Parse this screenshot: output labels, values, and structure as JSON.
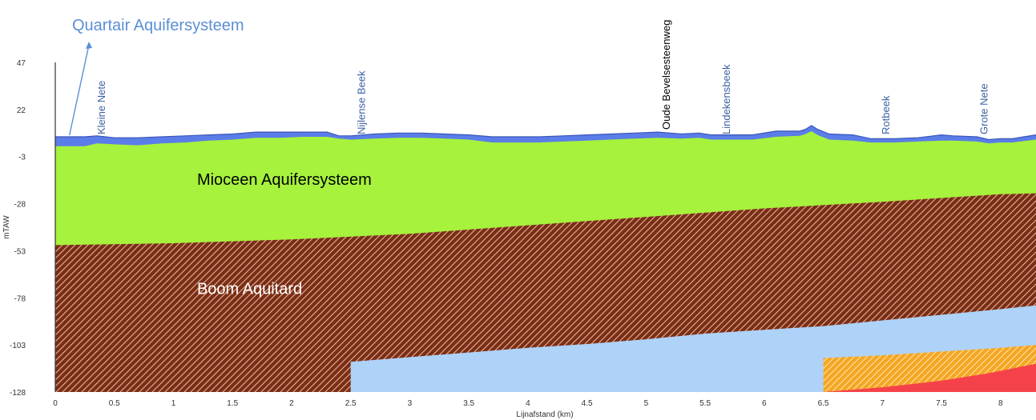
{
  "chart_data": {
    "type": "area",
    "xlabel": "Lijnafstand (km)",
    "ylabel": "mTAW",
    "xlim": [
      0,
      8.3
    ],
    "ylim": [
      -128,
      47
    ],
    "x_ticks": [
      "0",
      "0.5",
      "1",
      "1.5",
      "2",
      "2.5",
      "3",
      "3.5",
      "4",
      "4.5",
      "5",
      "5.5",
      "6",
      "6.5",
      "7",
      "7.5",
      "8"
    ],
    "y_ticks": [
      "47",
      "22",
      "-3",
      "-28",
      "-53",
      "-78",
      "-103",
      "-128"
    ],
    "grid": false,
    "surface": {
      "x": [
        0,
        0.25,
        0.35,
        0.5,
        0.7,
        0.9,
        1.1,
        1.3,
        1.5,
        1.7,
        1.9,
        2.1,
        2.3,
        2.4,
        2.5,
        2.7,
        2.9,
        3.1,
        3.3,
        3.5,
        3.7,
        3.9,
        4.1,
        4.3,
        4.5,
        4.7,
        4.9,
        5.1,
        5.3,
        5.45,
        5.55,
        5.7,
        5.9,
        6.1,
        6.3,
        6.35,
        6.4,
        6.45,
        6.55,
        6.75,
        6.9,
        7.1,
        7.3,
        7.5,
        7.6,
        7.8,
        7.9,
        8.0,
        8.1,
        8.3
      ],
      "y": [
        7.5,
        7.5,
        8,
        7,
        7,
        7.5,
        8,
        8.5,
        9,
        10,
        10,
        10,
        10,
        8,
        8,
        9,
        9.5,
        9.5,
        9,
        8.5,
        7.5,
        7.5,
        7.5,
        8,
        8.5,
        9,
        9.5,
        10,
        9,
        9.5,
        8.5,
        8.5,
        8.5,
        10.5,
        10.5,
        11.5,
        13.5,
        11.5,
        9,
        8.5,
        6.5,
        6.5,
        7,
        8.5,
        8,
        7.5,
        6,
        6.5,
        6.5,
        8.5
      ]
    },
    "layers": [
      {
        "name": "Quartair Aquifersysteem",
        "color": "#5b7de8",
        "top": "surface",
        "bottom_x": [
          0,
          0.25,
          0.35,
          0.5,
          0.7,
          0.9,
          1.1,
          1.3,
          1.5,
          1.7,
          1.9,
          2.1,
          2.3,
          2.4,
          2.5,
          2.7,
          2.9,
          3.1,
          3.3,
          3.5,
          3.7,
          3.9,
          4.1,
          4.3,
          4.5,
          4.7,
          4.9,
          5.1,
          5.3,
          5.45,
          5.55,
          5.7,
          5.9,
          6.1,
          6.3,
          6.35,
          6.4,
          6.45,
          6.55,
          6.75,
          6.9,
          7.1,
          7.3,
          7.5,
          7.6,
          7.8,
          7.9,
          8.0,
          8.1,
          8.3
        ],
        "bottom_y": [
          2.5,
          2.5,
          4,
          3.5,
          3,
          4,
          4.5,
          5.5,
          6,
          7,
          7,
          7.5,
          7.5,
          6.5,
          6,
          6.5,
          7,
          7,
          6.5,
          6,
          4.5,
          4.5,
          4.5,
          5,
          5.5,
          6,
          6.5,
          7,
          6.5,
          7,
          6,
          6,
          6,
          7.5,
          8,
          9,
          10.5,
          8.5,
          6,
          5.5,
          4.5,
          4.5,
          5,
          5.5,
          5.5,
          5,
          4,
          4.5,
          4.5,
          6
        ]
      },
      {
        "name": "Mioceen Aquifersysteem",
        "color": "#a6f23c",
        "bottom_x": [
          0,
          1,
          2,
          3,
          4,
          5,
          6,
          7,
          8,
          8.3
        ],
        "bottom_y": [
          -50,
          -49,
          -47,
          -44,
          -39.5,
          -35,
          -30.5,
          -27,
          -23,
          -22.5
        ]
      },
      {
        "name": "Boom Aquitard",
        "color": "#7a2e16",
        "hatch": true,
        "bottom_x": [
          0,
          0.5,
          1,
          1.5,
          2,
          2.5,
          3,
          3.5,
          4,
          4.5,
          5,
          5.5,
          6,
          6.5,
          7,
          7.5,
          8,
          8.3
        ],
        "bottom_y": [
          -127,
          -124,
          -121,
          -118,
          -115,
          -112,
          -109.5,
          -107,
          -104.5,
          -102.5,
          -100,
          -97,
          -95,
          -93,
          -90,
          -87,
          -84,
          -82
        ]
      },
      {
        "name": "",
        "color": "#aed2f8",
        "bottom_x": [
          2.5,
          3,
          3.5,
          4,
          4.5,
          5,
          5.5,
          6,
          6.5,
          7,
          7.5,
          8,
          8.3
        ],
        "bottom_y": [
          -128,
          -126,
          -123.5,
          -121,
          -119,
          -116,
          -113.5,
          -111.5,
          -110,
          -108.5,
          -106.5,
          -104.5,
          -103
        ]
      },
      {
        "name": "",
        "color": "#f5a623",
        "hatch": true,
        "bottom_x": [
          6.5,
          7,
          7.5,
          7.9,
          8.3
        ],
        "bottom_y": [
          -128,
          -125.5,
          -122,
          -118,
          -113
        ]
      }
    ],
    "layer_labels": [
      {
        "text": "Mioceen Aquifersysteem",
        "x": 1.2,
        "y": -18,
        "color": "#000000"
      },
      {
        "text": "Boom Aquitard",
        "x": 1.2,
        "y": -76,
        "color": "#ffffff"
      }
    ],
    "river_labels": [
      {
        "text": "Kleine Nete",
        "x": 0.42
      },
      {
        "text": "Nijlense Beek",
        "x": 2.62
      },
      {
        "text": "Lindekensbeek",
        "x": 5.71
      },
      {
        "text": "Rotbeek",
        "x": 7.06
      },
      {
        "text": "Grote Nete",
        "x": 7.89
      }
    ],
    "road_labels": [
      {
        "text": "Oude Bevelsesteenweg",
        "x": 5.2
      }
    ],
    "annotation": {
      "text": "Quartair Aquifersysteem",
      "color": "#5b8fd6",
      "arrow_to_x": 0.12,
      "arrow_to_y": 7.5
    }
  }
}
